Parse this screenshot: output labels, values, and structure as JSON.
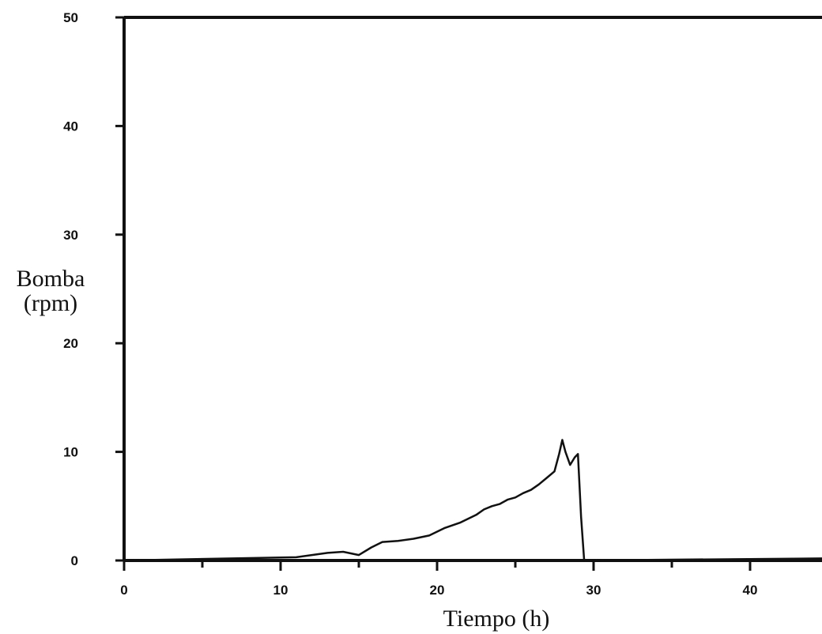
{
  "chart_data": {
    "type": "line",
    "title": "",
    "xlabel": "Tiempo (h)",
    "ylabel": "Bomba",
    "ylabel_unit": "(rpm)",
    "xlim": [
      0,
      45
    ],
    "ylim": [
      0,
      50
    ],
    "x_ticks": [
      0,
      10,
      20,
      30,
      40
    ],
    "y_ticks": [
      0,
      10,
      20,
      30,
      40,
      50
    ],
    "grid": false,
    "legend": "none",
    "colors": {
      "line": "#111111",
      "axis": "#111111",
      "background": "#ffffff"
    },
    "series": [
      {
        "x": [
          0,
          11,
          12,
          13,
          14,
          15,
          15.8,
          16.5,
          17.5,
          18.5,
          19.5,
          20.5,
          21.5,
          22.5,
          23,
          23.5,
          24,
          24.5,
          25,
          25.5,
          26,
          26.5,
          27,
          27.5,
          27.8,
          28,
          28.2,
          28.5,
          28.8,
          29,
          29.2,
          29.4,
          45
        ],
        "y": [
          0,
          0.3,
          0.5,
          0.7,
          0.8,
          0.5,
          1.2,
          1.7,
          1.8,
          2.0,
          2.3,
          3.0,
          3.5,
          4.2,
          4.7,
          5.0,
          5.2,
          5.6,
          5.8,
          6.2,
          6.5,
          7.0,
          7.6,
          8.2,
          9.8,
          11.1,
          10.0,
          8.8,
          9.5,
          9.8,
          4.0,
          0,
          0.2
        ]
      }
    ]
  }
}
